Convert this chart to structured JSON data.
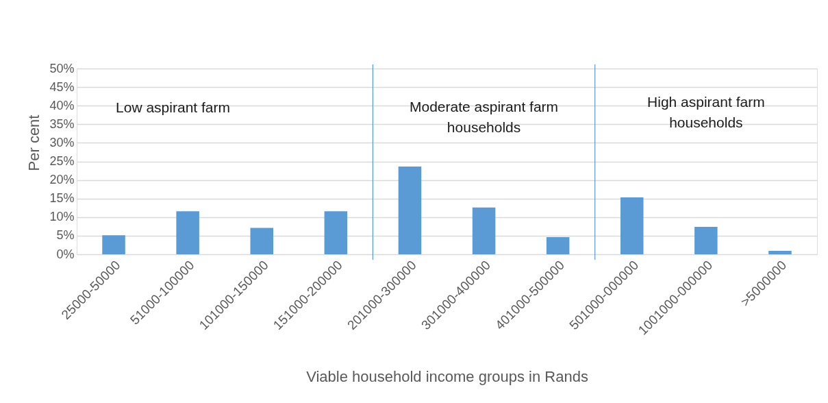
{
  "chart_data": {
    "type": "bar",
    "xlabel": "Viable household income groups in Rands",
    "ylabel": "Per cent",
    "categories": [
      "25000-50000",
      "51000-100000",
      "101000-150000",
      "151000-200000",
      "201000-300000",
      "301000-400000",
      "401000-500000",
      "501000-000000",
      "1001000-000000",
      ">5000000"
    ],
    "values": [
      5.1,
      11.6,
      7.1,
      11.6,
      23.6,
      12.6,
      4.6,
      15.3,
      7.4,
      0.9
    ],
    "color": "#5b9bd5",
    "ylim": [
      0,
      50
    ],
    "yticks": [
      {
        "value": 0,
        "label": "0%"
      },
      {
        "value": 5,
        "label": "5%"
      },
      {
        "value": 10,
        "label": "10%"
      },
      {
        "value": 15,
        "label": "15%"
      },
      {
        "value": 20,
        "label": "20%"
      },
      {
        "value": 25,
        "label": "25%"
      },
      {
        "value": 30,
        "label": "30%"
      },
      {
        "value": 35,
        "label": "35%"
      },
      {
        "value": 40,
        "label": "40%"
      },
      {
        "value": 45,
        "label": "45%"
      },
      {
        "value": 50,
        "label": "50%"
      }
    ],
    "grid": "y",
    "annotations": [
      "Low aspirant farm",
      "Moderate aspirant farm households",
      "High aspirant farm households"
    ]
  }
}
